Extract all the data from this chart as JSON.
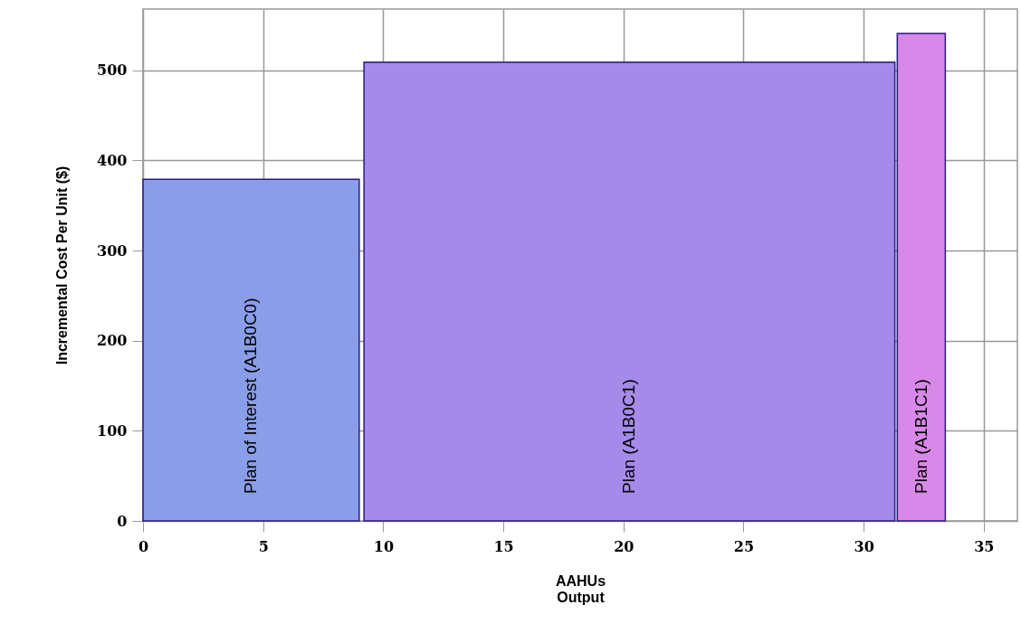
{
  "chart_data": {
    "type": "area",
    "xlabel": "AAHUs\nOutput",
    "ylabel": "Incremental Cost Per Unit ($)",
    "xlim": [
      0,
      36.4
    ],
    "xticks": [
      0,
      5,
      10,
      15,
      20,
      25,
      30,
      35
    ],
    "ylim": [
      0,
      568
    ],
    "yticks": [
      0,
      100,
      200,
      300,
      400,
      500
    ],
    "grid": true,
    "series": [
      {
        "name": "Plan of Interest (A1B0C0)",
        "color": "#8a9de8",
        "x": [
          0,
          9.0
        ],
        "values": [
          379,
          379
        ]
      },
      {
        "name": "Plan (A1B0C1)",
        "color": "#a58aea",
        "x": [
          9.2,
          31.3
        ],
        "values": [
          509,
          509
        ]
      },
      {
        "name": "Plan (A1B1C1)",
        "color": "#d888e8",
        "x": [
          31.4,
          33.4
        ],
        "values": [
          541,
          541
        ]
      }
    ]
  }
}
